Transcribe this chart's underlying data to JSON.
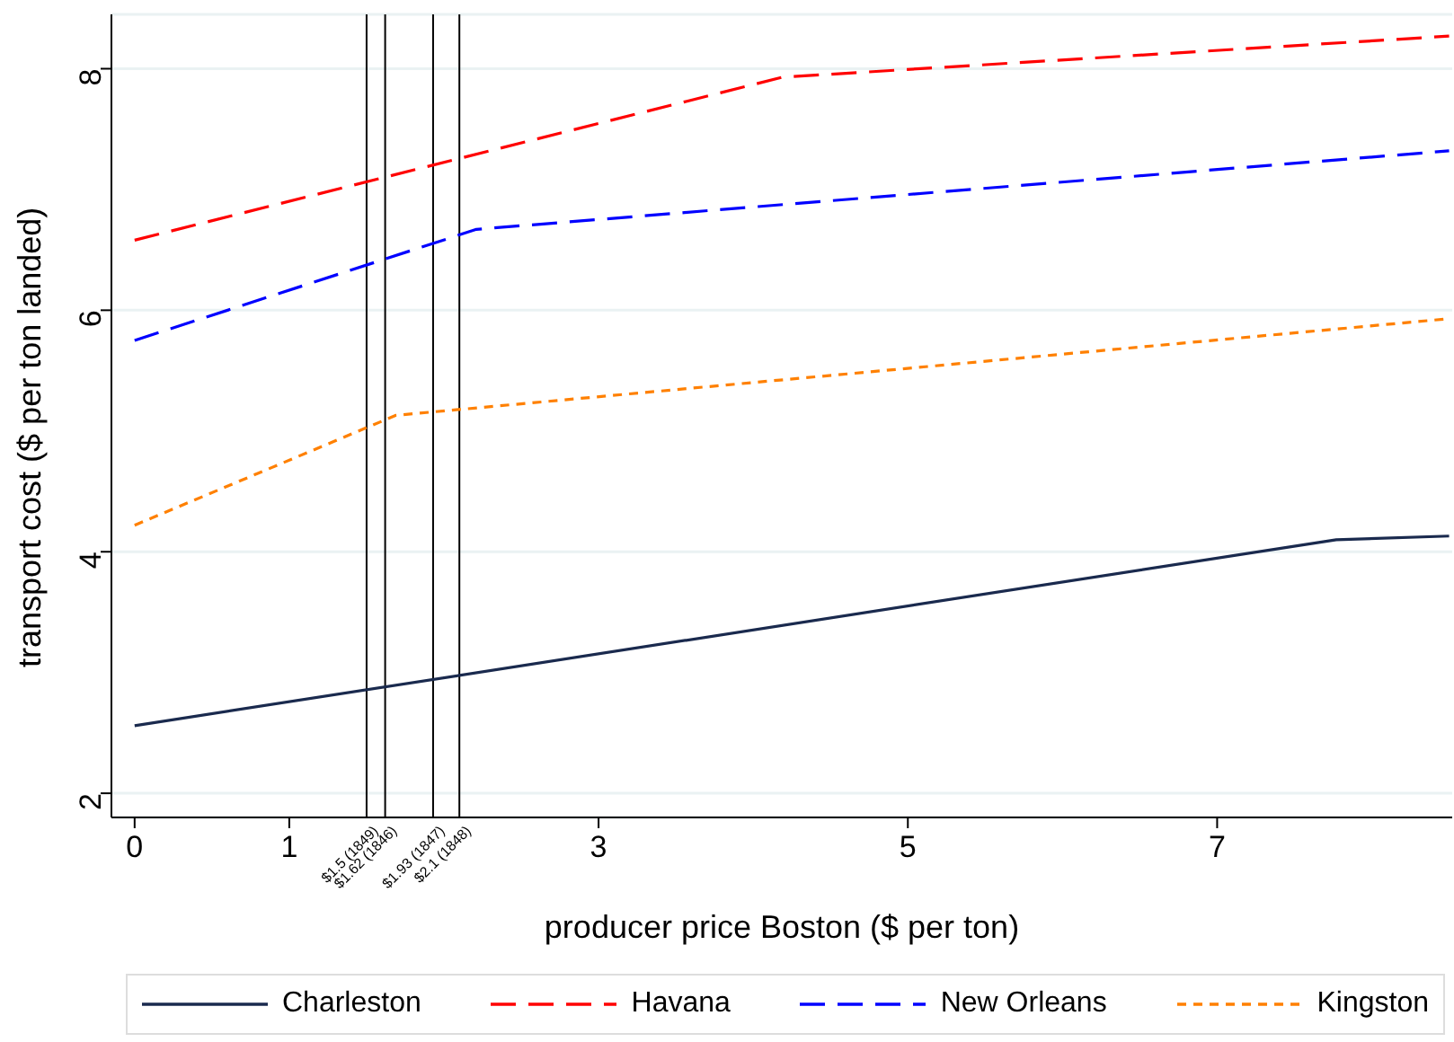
{
  "chart_data": {
    "type": "line",
    "xlabel": "producer price Boston ($ per ton)",
    "ylabel": "transport cost ($ per ton landed)",
    "xlim": [
      -0.15,
      8.52
    ],
    "ylim": [
      1.8,
      8.45
    ],
    "xticks": [
      0,
      1,
      3,
      5,
      7
    ],
    "yticks": [
      2,
      4,
      6,
      8
    ],
    "grid": "y",
    "legend": "bottom",
    "ref_lines": [
      {
        "axis": "x",
        "value": 1.5,
        "label": "$1.5 (1849)",
        "color": "#000000"
      },
      {
        "axis": "x",
        "value": 1.62,
        "label": "$1.62 (1846)",
        "color": "#000000"
      },
      {
        "axis": "x",
        "value": 1.93,
        "label": "$1.93 (1847)",
        "color": "#000000"
      },
      {
        "axis": "x",
        "value": 2.1,
        "label": "$2.1 (1848)",
        "color": "#000000"
      }
    ],
    "series": [
      {
        "name": "Charleston",
        "color": "#1a2a4e",
        "line_style": "solid",
        "x": [
          0,
          7.77,
          8.5
        ],
        "values": [
          2.56,
          4.1,
          4.13
        ]
      },
      {
        "name": "Havana",
        "color": "#ff0000",
        "line_style": "dashed",
        "x": [
          0,
          4.19,
          8.5
        ],
        "values": [
          6.58,
          7.93,
          8.27
        ]
      },
      {
        "name": "New Orleans",
        "color": "#0000ff",
        "line_style": "dashed",
        "x": [
          0,
          2.21,
          8.5
        ],
        "values": [
          5.75,
          6.67,
          7.32
        ]
      },
      {
        "name": "Kingston",
        "color": "#ff8000",
        "line_style": "dotted",
        "x": [
          0,
          1.69,
          8.5
        ],
        "values": [
          4.22,
          5.13,
          5.93
        ]
      }
    ]
  }
}
